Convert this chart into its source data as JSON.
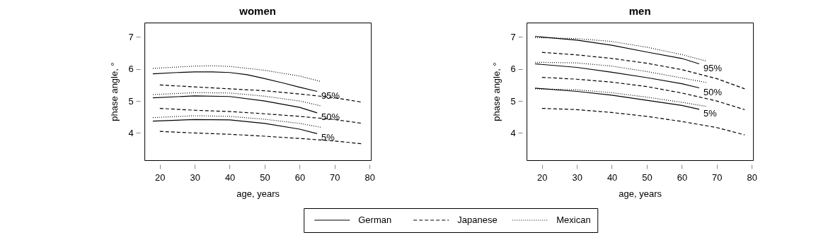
{
  "chart_data": [
    {
      "type": "line",
      "title": "women",
      "xlabel": "age, years",
      "ylabel": "phase angle, °",
      "xlim": [
        15.6,
        80.4
      ],
      "ylim": [
        3.15,
        7.45
      ],
      "xticks": [
        20,
        30,
        40,
        50,
        60,
        70,
        80
      ],
      "yticks": [
        4,
        5,
        6,
        7
      ],
      "grid": false,
      "legend": "bottom",
      "series": [
        {
          "name": "German",
          "color": "#000000",
          "line_style": "solid",
          "x": [
            18,
            25,
            30,
            35,
            40,
            45,
            50,
            55,
            60,
            65
          ],
          "values": [
            5.85,
            5.89,
            5.91,
            5.91,
            5.89,
            5.82,
            5.7,
            5.57,
            5.43,
            5.3
          ]
        },
        {
          "color": "#000000",
          "line_style": "solid",
          "x": [
            18,
            30,
            40,
            50,
            60,
            65
          ],
          "values": [
            5.1,
            5.16,
            5.14,
            5.0,
            4.8,
            4.63
          ]
        },
        {
          "color": "#000000",
          "line_style": "solid",
          "x": [
            18,
            30,
            40,
            50,
            60,
            65
          ],
          "values": [
            4.37,
            4.42,
            4.41,
            4.3,
            4.12,
            3.98
          ]
        },
        {
          "name": "Japanese",
          "color": "#000000",
          "line_style": "dashed",
          "x": [
            20,
            30,
            40,
            50,
            60,
            70,
            78
          ],
          "values": [
            5.5,
            5.44,
            5.38,
            5.32,
            5.22,
            5.1,
            4.96
          ]
        },
        {
          "color": "#000000",
          "line_style": "dashed",
          "x": [
            20,
            30,
            40,
            50,
            60,
            70,
            78
          ],
          "values": [
            4.77,
            4.71,
            4.67,
            4.6,
            4.52,
            4.42,
            4.3
          ]
        },
        {
          "color": "#000000",
          "line_style": "dashed",
          "x": [
            20,
            30,
            40,
            50,
            60,
            70,
            78
          ],
          "values": [
            4.05,
            4.0,
            3.96,
            3.9,
            3.83,
            3.75,
            3.66
          ]
        },
        {
          "name": "Mexican",
          "color": "#000000",
          "line_style": "dotted",
          "x": [
            18,
            30,
            35,
            40,
            50,
            60,
            66
          ],
          "values": [
            6.02,
            6.09,
            6.1,
            6.08,
            5.96,
            5.78,
            5.61
          ]
        },
        {
          "color": "#000000",
          "line_style": "dotted",
          "x": [
            18,
            30,
            40,
            50,
            60,
            66
          ],
          "values": [
            5.2,
            5.26,
            5.25,
            5.15,
            5.0,
            4.85
          ]
        },
        {
          "color": "#000000",
          "line_style": "dotted",
          "x": [
            18,
            30,
            40,
            50,
            60,
            66
          ],
          "values": [
            4.48,
            4.54,
            4.52,
            4.43,
            4.3,
            4.18
          ]
        }
      ],
      "annotations": [
        "95%",
        "50%",
        "5%"
      ]
    },
    {
      "type": "line",
      "title": "men",
      "xlabel": "age, years",
      "ylabel": "phase angle, °",
      "xlim": [
        15.6,
        80.4
      ],
      "ylim": [
        3.15,
        7.45
      ],
      "xticks": [
        20,
        30,
        40,
        50,
        60,
        70,
        80
      ],
      "yticks": [
        4,
        5,
        6,
        7
      ],
      "grid": false,
      "legend": "bottom",
      "series": [
        {
          "name": "German",
          "color": "#000000",
          "line_style": "solid",
          "x": [
            18,
            30,
            40,
            50,
            60,
            65
          ],
          "values": [
            7.02,
            6.9,
            6.74,
            6.53,
            6.33,
            6.16
          ]
        },
        {
          "color": "#000000",
          "line_style": "solid",
          "x": [
            18,
            30,
            40,
            50,
            60,
            65
          ],
          "values": [
            6.16,
            6.05,
            5.9,
            5.73,
            5.54,
            5.41
          ]
        },
        {
          "color": "#000000",
          "line_style": "solid",
          "x": [
            18,
            30,
            40,
            50,
            60,
            65
          ],
          "values": [
            5.4,
            5.3,
            5.18,
            5.02,
            4.86,
            4.74
          ]
        },
        {
          "name": "Japanese",
          "color": "#000000",
          "line_style": "dashed",
          "x": [
            20,
            30,
            40,
            50,
            60,
            70,
            78
          ],
          "values": [
            6.52,
            6.44,
            6.33,
            6.18,
            5.98,
            5.7,
            5.38
          ]
        },
        {
          "color": "#000000",
          "line_style": "dashed",
          "x": [
            20,
            30,
            40,
            50,
            60,
            70,
            78
          ],
          "values": [
            5.74,
            5.68,
            5.59,
            5.45,
            5.25,
            5.0,
            4.73
          ]
        },
        {
          "color": "#000000",
          "line_style": "dashed",
          "x": [
            20,
            30,
            40,
            50,
            60,
            70,
            78
          ],
          "values": [
            4.77,
            4.73,
            4.64,
            4.52,
            4.36,
            4.17,
            3.94
          ]
        },
        {
          "name": "Mexican",
          "color": "#000000",
          "line_style": "dotted",
          "x": [
            18,
            30,
            40,
            50,
            60,
            67
          ],
          "values": [
            6.98,
            6.95,
            6.86,
            6.68,
            6.45,
            6.25
          ]
        },
        {
          "color": "#000000",
          "line_style": "dotted",
          "x": [
            18,
            30,
            40,
            50,
            60,
            67
          ],
          "values": [
            6.21,
            6.19,
            6.09,
            5.92,
            5.72,
            5.58
          ]
        },
        {
          "color": "#000000",
          "line_style": "dotted",
          "x": [
            18,
            30,
            40,
            50,
            60,
            67
          ],
          "values": [
            5.38,
            5.35,
            5.26,
            5.12,
            4.96,
            4.83
          ]
        }
      ],
      "annotations": [
        "95%",
        "50%",
        "5%"
      ]
    }
  ]
}
